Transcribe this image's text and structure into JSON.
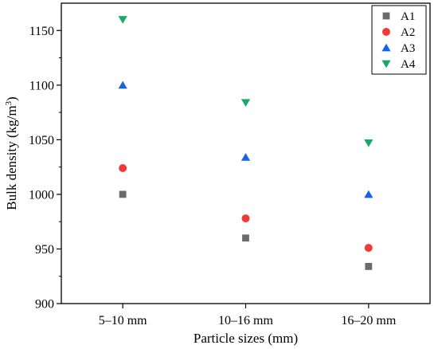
{
  "chart_data": {
    "type": "scatter",
    "categories": [
      "5–10 mm",
      "10–16 mm",
      "16–20 mm"
    ],
    "series": [
      {
        "name": "A1",
        "marker": "square",
        "color": "#6b6b6b",
        "values": [
          1000,
          960,
          934
        ]
      },
      {
        "name": "A2",
        "marker": "circle",
        "color": "#f03a3a",
        "values": [
          1024,
          978,
          951
        ]
      },
      {
        "name": "A3",
        "marker": "triangle-up",
        "color": "#1565e0",
        "values": [
          1100,
          1034,
          1000
        ]
      },
      {
        "name": "A4",
        "marker": "triangle-down",
        "color": "#1aa866",
        "values": [
          1160,
          1084,
          1047
        ]
      }
    ],
    "xlabel": "Particle sizes (mm)",
    "ylabel_main": "Bulk density (kg/m",
    "ylabel_sup": "3",
    "ylabel_end": ")",
    "ylim": [
      900,
      1175
    ],
    "yticks": [
      900,
      950,
      1000,
      1050,
      1100,
      1150
    ],
    "yticks_minor": [
      925,
      975,
      1025,
      1075,
      1125
    ],
    "grid": false,
    "legend_position": "top-right"
  }
}
